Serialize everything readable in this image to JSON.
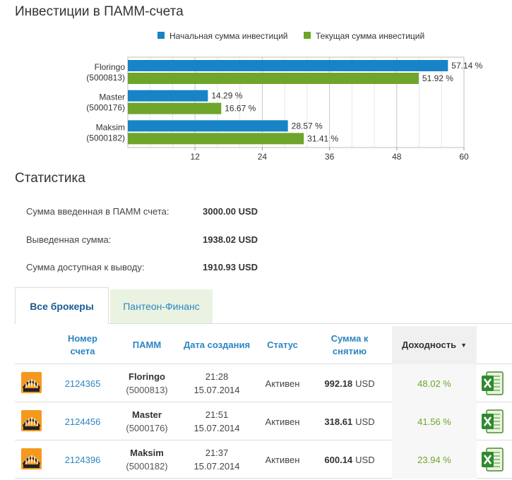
{
  "page": {
    "invest_title": "Инвестиции в ПАММ-счета",
    "stats_title": "Статистика"
  },
  "colors": {
    "initial": "#1883c7",
    "current": "#6ea52a",
    "link": "#2c86c2"
  },
  "chart_data": {
    "type": "bar",
    "orientation": "horizontal",
    "categories": [
      "Floringo (5000813)",
      "Master (5000176)",
      "Maksim (5000182)"
    ],
    "category_lines": [
      [
        "Floringo",
        "(5000813)"
      ],
      [
        "Master",
        "(5000176)"
      ],
      [
        "Maksim",
        "(5000182)"
      ]
    ],
    "series": [
      {
        "name": "Начальная сумма инвестиций",
        "values": [
          57.14,
          14.29,
          28.57
        ],
        "labels": [
          "57.14 %",
          "14.29 %",
          "28.57 %"
        ],
        "color": "#1883c7"
      },
      {
        "name": "Текущая сумма инвестиций",
        "values": [
          51.92,
          16.67,
          31.41
        ],
        "labels": [
          "51.92 %",
          "16.67 %",
          "31.41 %"
        ],
        "color": "#6ea52a"
      }
    ],
    "xlim": [
      0,
      60
    ],
    "xticks": [
      12,
      24,
      36,
      48,
      60
    ],
    "xtick_labels": [
      "12",
      "24",
      "36",
      "48",
      "60"
    ],
    "legend_position": "top",
    "grid": true
  },
  "stats": [
    {
      "label": "Сумма введенная в ПАММ счета:",
      "value": "3000.00 USD"
    },
    {
      "label": "Выведенная сумма:",
      "value": "1938.02 USD"
    },
    {
      "label": "Сумма доступная к выводу:",
      "value": "1910.93 USD"
    }
  ],
  "tabs": [
    {
      "label": "Все брокеры",
      "active": true
    },
    {
      "label": "Пантеон-Финанс",
      "active": false
    }
  ],
  "table": {
    "headers": {
      "account_line1": "Номер",
      "account_line2": "счета",
      "pamm": "ПАММ",
      "created": "Дата создания",
      "status": "Статус",
      "sum_line1": "Сумма к",
      "sum_line2": "снятию",
      "yield": "Доходность"
    },
    "rows": [
      {
        "account": "2124365",
        "pamm_name": "Floringo",
        "pamm_id": "(5000813)",
        "time": "21:28",
        "date": "15.07.2014",
        "status": "Активен",
        "sum": "992.18",
        "currency": "USD",
        "yield": "48.02 %"
      },
      {
        "account": "2124456",
        "pamm_name": "Master",
        "pamm_id": "(5000176)",
        "time": "21:51",
        "date": "15.07.2014",
        "status": "Активен",
        "sum": "318.61",
        "currency": "USD",
        "yield": "41.56 %"
      },
      {
        "account": "2124396",
        "pamm_name": "Maksim",
        "pamm_id": "(5000182)",
        "time": "21:37",
        "date": "15.07.2014",
        "status": "Активен",
        "sum": "600.14",
        "currency": "USD",
        "yield": "23.94 %"
      }
    ],
    "row_icon": "broker-logo-icon",
    "export_icon": "excel-export-icon"
  }
}
